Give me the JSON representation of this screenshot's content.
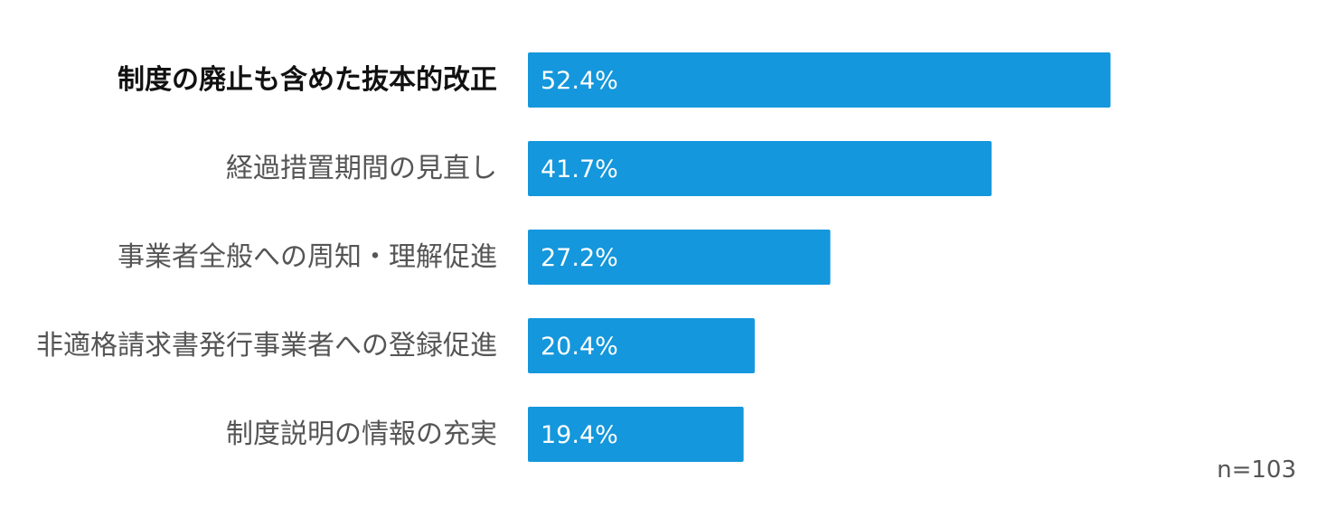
{
  "chart_data": {
    "type": "bar",
    "orientation": "horizontal",
    "categories": [
      "制度の廃止も含めた抜本的改正",
      "経過措置期間の見直し",
      "事業者全般への周知・理解促進",
      "非適格請求書発行事業者への登録促進",
      "制度説明の情報の充実"
    ],
    "values": [
      52.4,
      41.7,
      27.2,
      20.4,
      19.4
    ],
    "value_labels": [
      "52.4%",
      "41.7%",
      "27.2%",
      "20.4%",
      "19.4%"
    ],
    "highlighted_category_index": 0,
    "bar_color": "#1497dc",
    "grid": false,
    "title": "",
    "xlabel": "",
    "ylabel": ""
  },
  "note": "n=103"
}
